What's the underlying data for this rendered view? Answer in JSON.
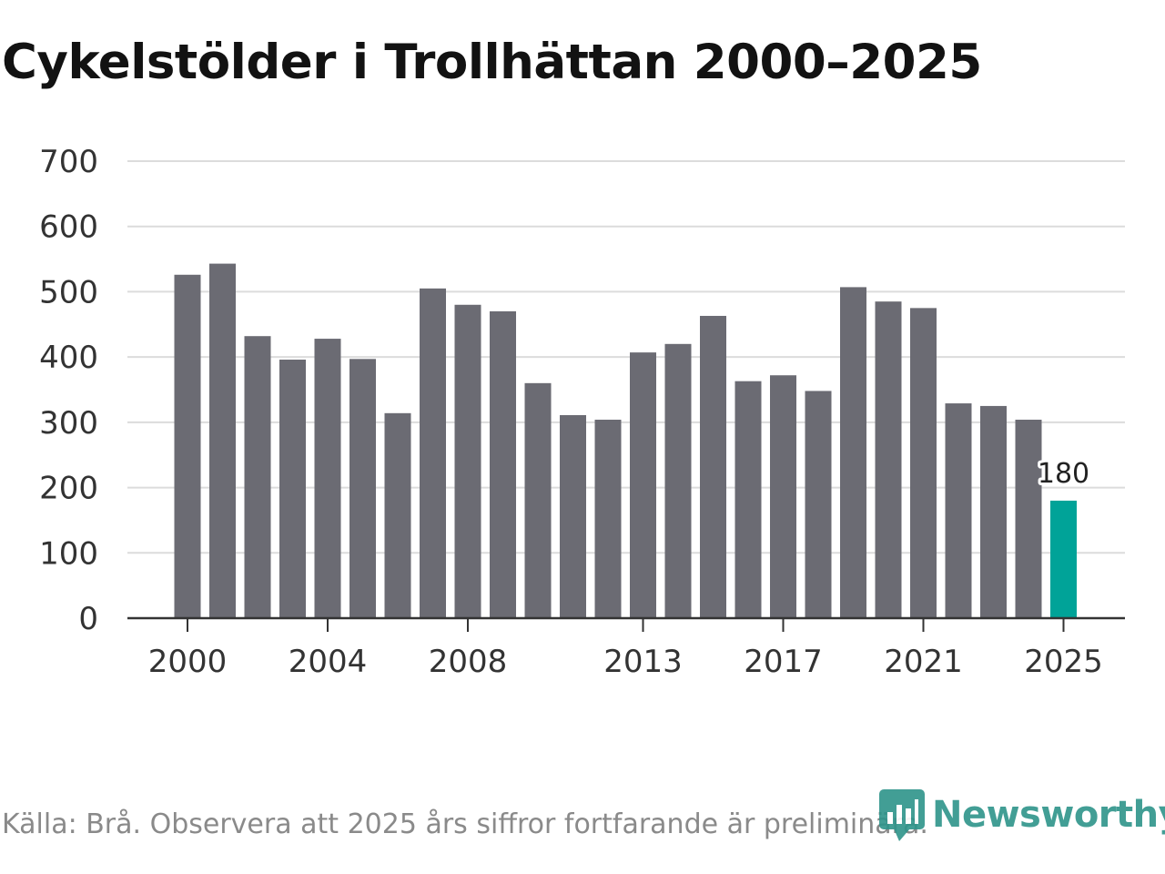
{
  "chart_data": {
    "type": "bar",
    "title": "Cykelstölder i Trollhättan 2000–2025",
    "xlabel": "",
    "ylabel": "",
    "ylim": [
      0,
      700
    ],
    "yticks": [
      0,
      100,
      200,
      300,
      400,
      500,
      600,
      700
    ],
    "categories": [
      "2000",
      "2001",
      "2002",
      "2003",
      "2004",
      "2005",
      "2006",
      "2007",
      "2008",
      "2009",
      "2010",
      "2011",
      "2012",
      "2013",
      "2014",
      "2015",
      "2016",
      "2017",
      "2018",
      "2019",
      "2020",
      "2021",
      "2022",
      "2023",
      "2024",
      "2025"
    ],
    "values": [
      526,
      543,
      432,
      396,
      428,
      397,
      314,
      505,
      480,
      470,
      360,
      311,
      304,
      407,
      420,
      463,
      363,
      372,
      348,
      507,
      485,
      475,
      329,
      325,
      304,
      180
    ],
    "xtick_labels": [
      "2000",
      "2004",
      "2008",
      "2013",
      "2017",
      "2021",
      "2025"
    ],
    "highlight": {
      "category": "2025",
      "value": "180"
    },
    "grid": true,
    "colors": {
      "bar": "#6b6b73",
      "highlight": "#00a398",
      "grid": "#dcdcdc",
      "axis": "#333333"
    }
  },
  "footer": {
    "source": "Källa: Brå. Observera att 2025 års siffror fortfarande är preliminära."
  },
  "brand": {
    "name": "Newsworthy",
    "icon": "newsworthy-logo-icon",
    "color": "#2e948a"
  }
}
